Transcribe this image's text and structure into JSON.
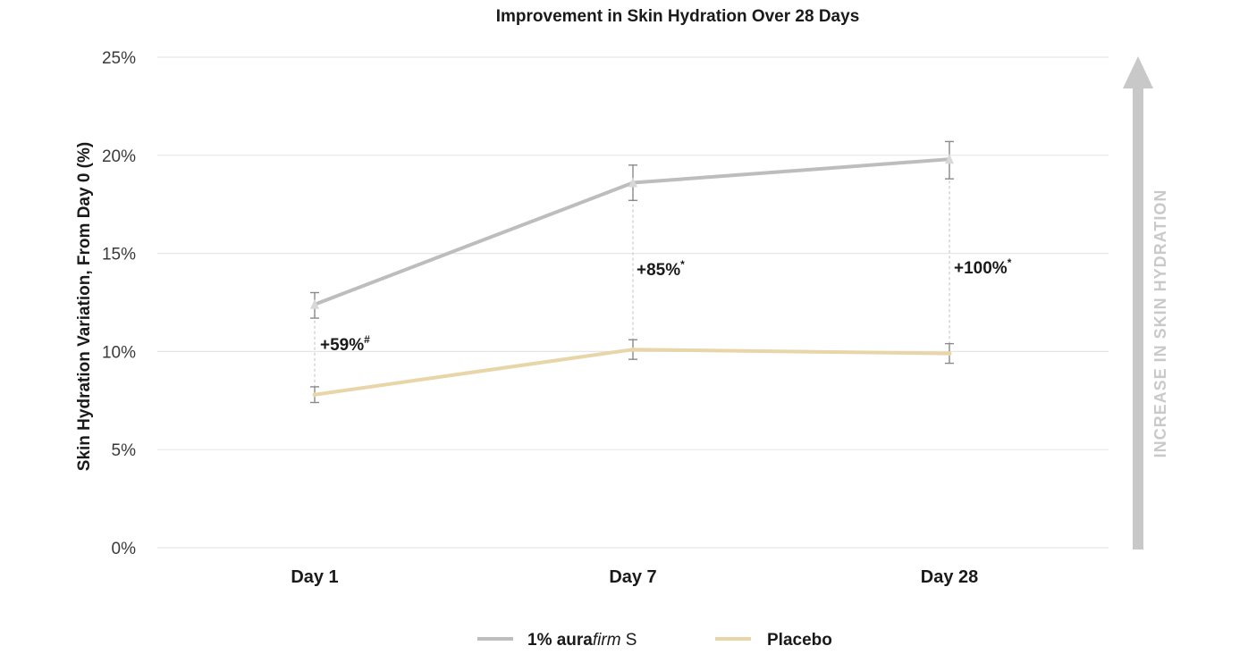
{
  "chart_data": {
    "type": "line",
    "title": "Improvement in Skin Hydration Over 28 Days",
    "ylabel": "Skin Hydration Variation, From Day 0 (%)",
    "xlabel": "",
    "categories": [
      "Day 1",
      "Day 7",
      "Day 28"
    ],
    "ylim": [
      0,
      25
    ],
    "yticks": [
      0,
      5,
      10,
      15,
      20,
      25
    ],
    "ytick_labels": [
      "0%",
      "5%",
      "10%",
      "15%",
      "20%",
      "25%"
    ],
    "grid": true,
    "legend_position": "bottom-center",
    "series": [
      {
        "name": "1% aurafirm S",
        "legend_parts": [
          "1% aura",
          "firm",
          " S"
        ],
        "color": "#bdbdbd",
        "values": [
          12.4,
          18.6,
          19.8
        ],
        "error": [
          [
            11.7,
            13.0
          ],
          [
            17.7,
            19.5
          ],
          [
            18.8,
            20.7
          ]
        ]
      },
      {
        "name": "Placebo",
        "color": "#e8d6a8",
        "values": [
          7.8,
          10.1,
          9.9
        ],
        "error": [
          [
            7.4,
            8.2
          ],
          [
            9.6,
            10.6
          ],
          [
            9.4,
            10.4
          ]
        ]
      }
    ],
    "annotations": [
      {
        "text": "+59%",
        "mark": "#",
        "category": "Day 1"
      },
      {
        "text": "+85%",
        "mark": "*",
        "category": "Day 7"
      },
      {
        "text": "+100%",
        "mark": "*",
        "category": "Day 28"
      }
    ],
    "side_arrow_label": "INCREASE IN  SKIN HYDRATION",
    "colors": {
      "grid": "#e6e6e6",
      "axis_text": "#3a3a3a",
      "arrow": "#c8c8c8",
      "error_bar": "#8a8a8a",
      "connector": "#c8c8c8"
    }
  }
}
